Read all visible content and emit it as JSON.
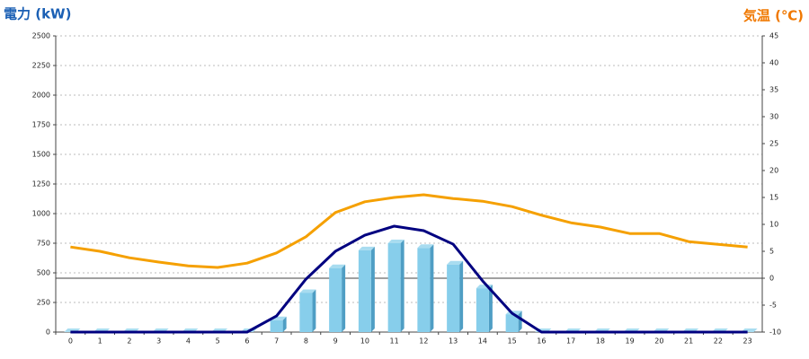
{
  "chart_data": {
    "type": "bar",
    "title_left": "電力 (kW)",
    "title_right": "気温 (℃)",
    "categories": [
      "0",
      "1",
      "2",
      "3",
      "4",
      "5",
      "6",
      "7",
      "8",
      "9",
      "10",
      "11",
      "12",
      "13",
      "14",
      "15",
      "16",
      "17",
      "18",
      "19",
      "20",
      "21",
      "22",
      "23"
    ],
    "series": [
      {
        "type": "bar",
        "color": "#87ceeb",
        "values": [
          0,
          0,
          0,
          0,
          0,
          0,
          0,
          100,
          330,
          540,
          690,
          750,
          710,
          570,
          370,
          150,
          0,
          0,
          0,
          0,
          0,
          0,
          0,
          0
        ]
      },
      {
        "type": "line",
        "color": "#000080",
        "values": [
          0,
          0,
          0,
          0,
          0,
          0,
          0,
          136,
          447,
          682,
          818,
          894,
          856,
          742,
          432,
          159,
          0,
          0,
          0,
          0,
          0,
          0,
          0,
          0
        ]
      },
      {
        "type": "line",
        "color": "#f5a000",
        "axis": "y2",
        "values": [
          5.8,
          5,
          3.8,
          3,
          2.3,
          2,
          2.8,
          4.7,
          7.7,
          12.2,
          14.2,
          15,
          15.5,
          14.8,
          14.3,
          13.3,
          11.7,
          10.3,
          9.5,
          8.3,
          8.3,
          6.8,
          6.3,
          5.8
        ]
      }
    ],
    "ylim": [
      0,
      2500
    ],
    "yticks": [
      0,
      250,
      500,
      750,
      1000,
      1250,
      1500,
      1750,
      2000,
      2250,
      2500
    ],
    "y2lim": [
      -10,
      45
    ],
    "y2ticks": [
      -10,
      -5,
      0,
      5,
      10,
      15,
      20,
      25,
      30,
      35,
      40,
      45
    ],
    "grid": true
  }
}
